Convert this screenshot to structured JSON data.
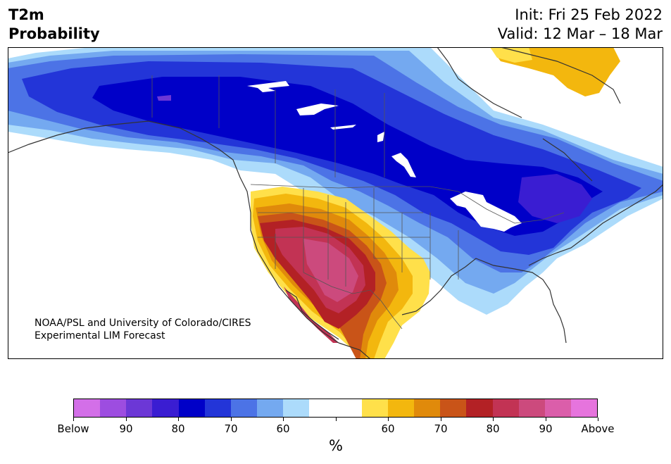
{
  "title": {
    "line1": "T2m",
    "line2": "Probability"
  },
  "info": {
    "init": "Init: Fri 25 Feb 2022",
    "valid": "Valid: 12 Mar – 18 Mar"
  },
  "credit": {
    "line1": "NOAA/PSL and University of Colorado/CIRES",
    "line2": "Experimental LIM Forecast"
  },
  "colorbar": {
    "unit": "%",
    "colors": [
      "#d36fe8",
      "#9d4de0",
      "#6c37d6",
      "#3a1dd2",
      "#0000c8",
      "#2335d8",
      "#4c73e6",
      "#74a9f0",
      "#acdbfb",
      "#ffffff",
      "#ffffff",
      "#ffe04a",
      "#f3b70e",
      "#e08a0b",
      "#c95418",
      "#b32125",
      "#c23354",
      "#cc4a7d",
      "#db5eaa",
      "#e674dd"
    ],
    "labels": [
      "Below",
      "90",
      "80",
      "70",
      "60",
      "",
      "60",
      "70",
      "80",
      "90",
      "Above"
    ]
  },
  "legend_colors": {
    "below_strong": "#0000c8",
    "below_moderate": "#4c73e6",
    "below_light": "#acdbfb",
    "above_light": "#ffe04a",
    "above_moderate": "#e08a0b",
    "above_strong": "#b32125",
    "above_extreme": "#cc4a7d"
  }
}
